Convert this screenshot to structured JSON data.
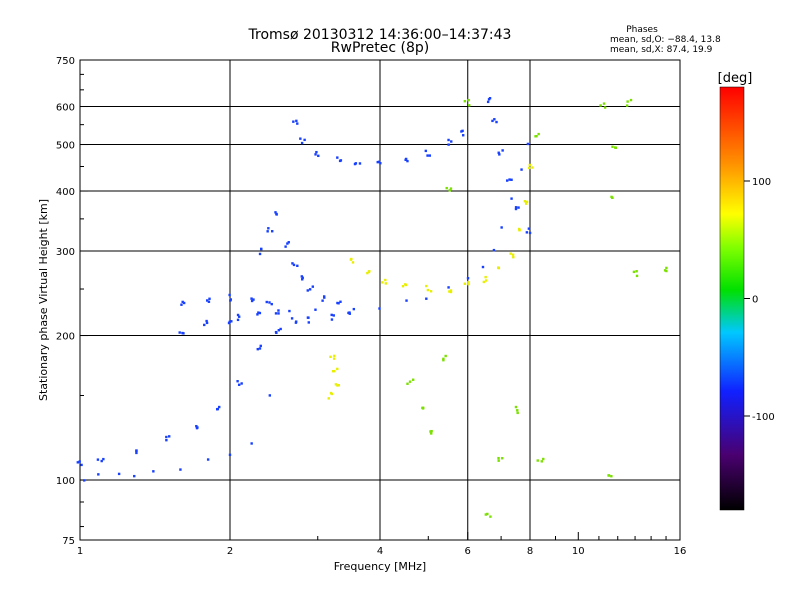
{
  "chart_data": {
    "type": "scatter",
    "title": "Tromsø 20130312 14:36:00–14:37:43",
    "subtitle": "RwPretec (8p)",
    "stats": {
      "heading": "Phases",
      "line_o": "mean, sd,O: −88.4, 13.8",
      "line_x": "mean, sd,X:  87.4, 19.9"
    },
    "xlabel": "Frequency [MHz]",
    "ylabel": "Stationary phase Virtual Height [km]",
    "x_scale": "log",
    "y_scale": "log",
    "xlim": [
      1,
      16
    ],
    "ylim": [
      75,
      750
    ],
    "x_ticks": [
      1,
      2,
      4,
      6,
      8,
      10,
      16
    ],
    "y_ticks": [
      75,
      100,
      200,
      300,
      400,
      500,
      600,
      750
    ],
    "x_grid": [
      2,
      4,
      6,
      8
    ],
    "y_grid": [
      100,
      200,
      300,
      400,
      500,
      600
    ],
    "colorbar": {
      "label": "[deg]",
      "range": [
        -180,
        180
      ],
      "ticks": [
        100,
        0,
        -100
      ]
    },
    "series": [
      {
        "values": [
          [
            1.02,
            100
          ],
          [
            1.1,
            102
          ],
          [
            1.2,
            103
          ],
          [
            1.3,
            103
          ],
          [
            1.4,
            104
          ],
          [
            1.6,
            106
          ],
          [
            1.8,
            109
          ],
          [
            2.0,
            112
          ],
          [
            2.2,
            118
          ],
          [
            2.4,
            150
          ],
          [
            2.5,
            200
          ],
          [
            2.6,
            228
          ],
          [
            3.0,
            226
          ],
          [
            3.5,
            225
          ],
          [
            4.0,
            228
          ],
          [
            4.5,
            235
          ],
          [
            5.0,
            242
          ],
          [
            5.5,
            250
          ],
          [
            6.0,
            262
          ],
          [
            6.5,
            280
          ],
          [
            6.8,
            300
          ],
          [
            7.1,
            340
          ],
          [
            7.4,
            390
          ],
          [
            7.7,
            440
          ],
          [
            7.9,
            500
          ]
        ],
        "phase": -100
      },
      {
        "values": [
          [
            1.0,
            108
          ],
          [
            1.1,
            110
          ],
          [
            1.3,
            115
          ],
          [
            1.5,
            122
          ],
          [
            1.7,
            130
          ],
          [
            1.9,
            140
          ],
          [
            2.1,
            160
          ],
          [
            2.3,
            190
          ],
          [
            2.5,
            205
          ],
          [
            2.7,
            215
          ],
          [
            2.9,
            215
          ],
          [
            3.2,
            218
          ],
          [
            3.5,
            222
          ]
        ],
        "phase": -95
      },
      {
        "values": [
          [
            1.6,
            200
          ],
          [
            1.8,
            212
          ],
          [
            2.0,
            215
          ],
          [
            2.1,
            218
          ],
          [
            2.3,
            222
          ],
          [
            2.5,
            225
          ]
        ],
        "phase": -110
      },
      {
        "values": [
          [
            1.6,
            235
          ],
          [
            1.8,
            238
          ],
          [
            2.0,
            240
          ],
          [
            2.2,
            238
          ],
          [
            2.4,
            234
          ]
        ],
        "phase": -100
      },
      {
        "values": [
          [
            2.3,
            300
          ],
          [
            2.4,
            330
          ],
          [
            2.5,
            360
          ],
          [
            2.6,
            310
          ],
          [
            2.7,
            280
          ],
          [
            2.8,
            262
          ],
          [
            2.9,
            250
          ],
          [
            3.1,
            238
          ],
          [
            3.3,
            232
          ]
        ],
        "phase": -100
      },
      {
        "values": [
          [
            2.7,
            560
          ],
          [
            2.8,
            510
          ],
          [
            3.0,
            480
          ],
          [
            3.3,
            465
          ],
          [
            3.6,
            458
          ],
          [
            4.0,
            458
          ],
          [
            4.5,
            465
          ],
          [
            5.0,
            480
          ],
          [
            5.5,
            505
          ],
          [
            5.9,
            530
          ]
        ],
        "phase": -100
      },
      {
        "values": [
          [
            3.5,
            285
          ],
          [
            3.8,
            270
          ],
          [
            4.1,
            258
          ],
          [
            4.5,
            252
          ],
          [
            5.0,
            250
          ],
          [
            5.5,
            250
          ],
          [
            6.0,
            255
          ],
          [
            6.5,
            262
          ],
          [
            7.0,
            275
          ],
          [
            7.4,
            295
          ],
          [
            7.7,
            330
          ],
          [
            7.9,
            380
          ],
          [
            8.0,
            450
          ]
        ],
        "phase": 110
      },
      {
        "values": [
          [
            6.6,
            620
          ],
          [
            6.8,
            560
          ],
          [
            7.0,
            480
          ],
          [
            7.3,
            420
          ],
          [
            7.6,
            370
          ],
          [
            7.9,
            330
          ]
        ],
        "phase": -100
      },
      {
        "values": [
          [
            3.2,
            180
          ],
          [
            3.25,
            170
          ],
          [
            3.3,
            158
          ],
          [
            3.2,
            150
          ]
        ],
        "phase": 110
      },
      {
        "values": [
          [
            5.4,
            180
          ],
          [
            5.5,
            400
          ],
          [
            6.0,
            610
          ],
          [
            7.6,
            140
          ],
          [
            8.3,
            520
          ],
          [
            8.4,
            110
          ],
          [
            11.2,
            600
          ],
          [
            11.5,
            103
          ],
          [
            11.8,
            490
          ],
          [
            12.6,
            610
          ],
          [
            13.0,
            270
          ],
          [
            15.0,
            275
          ],
          [
            11.6,
            390
          ],
          [
            4.6,
            160
          ],
          [
            4.9,
            140
          ],
          [
            5.1,
            125
          ],
          [
            7.0,
            110
          ],
          [
            6.6,
            85
          ]
        ],
        "phase": 60
      }
    ]
  }
}
